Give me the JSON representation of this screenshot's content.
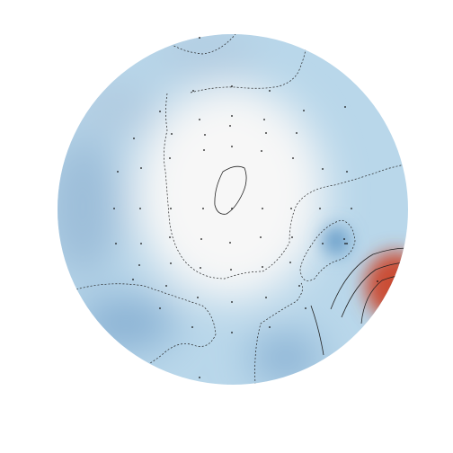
{
  "chart_data": {
    "type": "heatmap",
    "subtype": "scalp-topomap",
    "title": "",
    "colorbar": "none",
    "colormap": {
      "low": "#2f78b5",
      "mid": "#f7f7f7",
      "high": "#c8442c"
    },
    "value_range": [
      -1,
      1
    ],
    "grid": false,
    "legend": "none",
    "sensor_count": 64,
    "sensor_marker": "black dot",
    "contours": [
      {
        "level": -0.1,
        "style": "dashed",
        "id": "upper-left"
      },
      {
        "level": -0.1,
        "style": "dashed",
        "id": "right-pocket"
      },
      {
        "level": -0.1,
        "style": "dashed",
        "id": "lower-right"
      },
      {
        "level": -0.1,
        "style": "dashed",
        "id": "top-small"
      },
      {
        "level": 0.0,
        "style": "solid",
        "id": "center-zero"
      },
      {
        "level": 0.0,
        "style": "solid",
        "id": "right-zero"
      },
      {
        "level": 0.25,
        "style": "solid",
        "id": "right-pos-1"
      },
      {
        "level": 0.5,
        "style": "solid",
        "id": "right-pos-2"
      },
      {
        "level": 0.75,
        "style": "solid",
        "id": "right-pos-3"
      }
    ],
    "field_sources": [
      {
        "region": "center",
        "value": 0.0
      },
      {
        "region": "right-edge",
        "value": 0.95
      },
      {
        "region": "right-pocket",
        "value": -0.75
      },
      {
        "region": "lower-right",
        "value": -0.55
      },
      {
        "region": "left",
        "value": -0.45
      },
      {
        "region": "lower-left",
        "value": -0.55
      },
      {
        "region": "upper-left",
        "value": -0.35
      },
      {
        "region": "top",
        "value": -0.35
      }
    ]
  }
}
